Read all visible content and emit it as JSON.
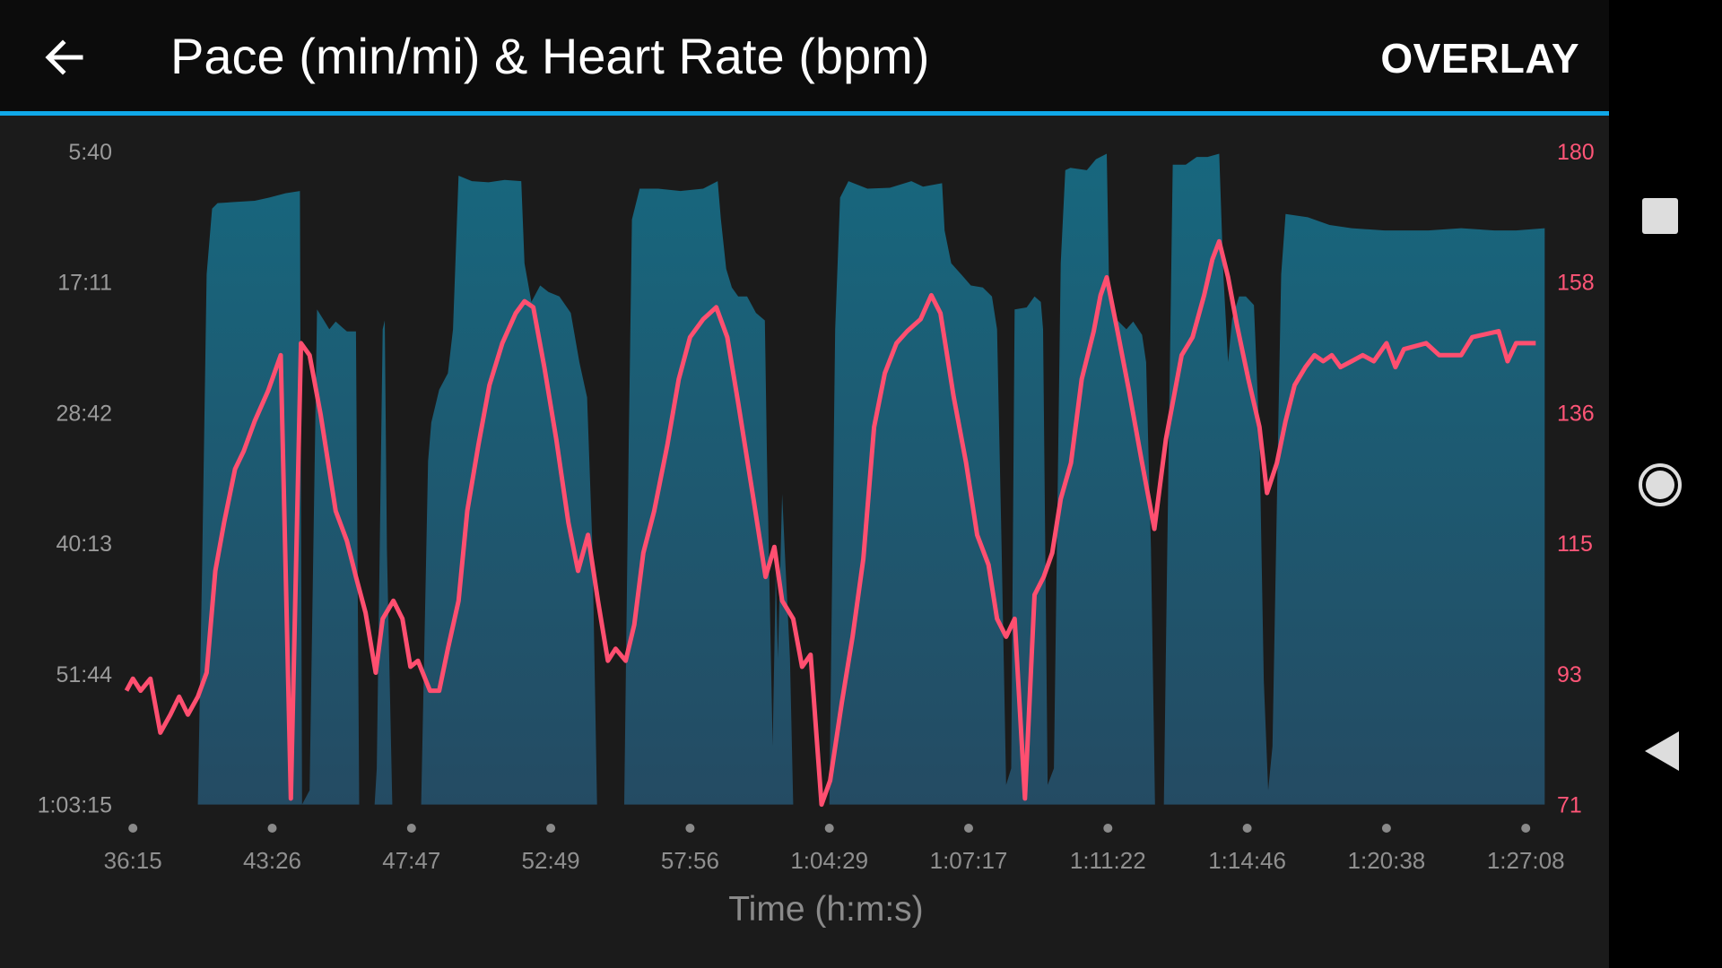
{
  "header": {
    "title": "Pace (min/mi) & Heart Rate (bpm)",
    "overlay_label": "OVERLAY",
    "back_icon": "arrow-left-icon"
  },
  "colors": {
    "accent_line": "#10a8e8",
    "pace_fill_top": "#17677e",
    "pace_fill_bottom": "#244b63",
    "heart_rate": "#ff4f70",
    "axis_text": "#a0a0a0"
  },
  "navbar": {
    "icons": [
      "square-recents-icon",
      "circle-home-icon",
      "triangle-back-icon"
    ]
  },
  "chart_data": {
    "type": "area+line",
    "xlabel": "Time (h:m:s)",
    "x_ticks": [
      "36:15",
      "43:26",
      "47:47",
      "52:49",
      "57:56",
      "1:04:29",
      "1:07:17",
      "1:11:22",
      "1:14:46",
      "1:20:38",
      "1:27:08"
    ],
    "x_tick_seconds": [
      2175,
      2606,
      2867,
      3169,
      3476,
      3869,
      4037,
      4282,
      4486,
      4838,
      5228
    ],
    "left_axis": {
      "unit": "min/mi",
      "ticks": [
        "5:40",
        "17:11",
        "28:42",
        "40:13",
        "51:44",
        "1:03:15"
      ],
      "range_seconds": [
        340,
        3795
      ],
      "inverted": true
    },
    "right_axis": {
      "unit": "bpm",
      "ticks": [
        "180",
        "158",
        "136",
        "115",
        "93",
        "71"
      ],
      "range": [
        71,
        180
      ]
    },
    "grid": false,
    "series": [
      {
        "kind": "area",
        "axis": "left",
        "points_t_s_pace_s": [
          [
            2376,
            3795
          ],
          [
            2389,
            2558
          ],
          [
            2403,
            990
          ],
          [
            2420,
            642
          ],
          [
            2437,
            613
          ],
          [
            2495,
            607
          ],
          [
            2552,
            601
          ],
          [
            2596,
            584
          ],
          [
            2631,
            561
          ],
          [
            2658,
            549
          ],
          [
            2662,
            3795
          ],
          [
            2676,
            3720
          ],
          [
            2690,
            1176
          ],
          [
            2703,
            1234
          ],
          [
            2713,
            1281
          ],
          [
            2725,
            1240
          ],
          [
            2746,
            1292
          ],
          [
            2763,
            1292
          ],
          [
            2769,
            3795
          ],
          [
            2798,
            3795
          ],
          [
            2802,
            3604
          ],
          [
            2813,
            1281
          ],
          [
            2817,
            1234
          ],
          [
            2821,
            2442
          ],
          [
            2831,
            3795
          ],
          [
            2888,
            3795
          ],
          [
            2903,
            1978
          ],
          [
            2910,
            1774
          ],
          [
            2927,
            1600
          ],
          [
            2946,
            1513
          ],
          [
            2957,
            1281
          ],
          [
            2969,
            468
          ],
          [
            2998,
            497
          ],
          [
            3034,
            503
          ],
          [
            3069,
            491
          ],
          [
            3105,
            497
          ],
          [
            3112,
            932
          ],
          [
            3127,
            1136
          ],
          [
            3146,
            1049
          ],
          [
            3164,
            1083
          ],
          [
            3188,
            1107
          ],
          [
            3213,
            1194
          ],
          [
            3232,
            1455
          ],
          [
            3249,
            1641
          ],
          [
            3261,
            2442
          ],
          [
            3271,
            3795
          ],
          [
            3331,
            3795
          ],
          [
            3341,
            1861
          ],
          [
            3348,
            700
          ],
          [
            3365,
            537
          ],
          [
            3406,
            537
          ],
          [
            3455,
            549
          ],
          [
            3513,
            537
          ],
          [
            3554,
            497
          ],
          [
            3563,
            700
          ],
          [
            3578,
            961
          ],
          [
            3594,
            1060
          ],
          [
            3612,
            1107
          ],
          [
            3637,
            1107
          ],
          [
            3662,
            1194
          ],
          [
            3687,
            1234
          ],
          [
            3693,
            1978
          ],
          [
            3709,
            3487
          ],
          [
            3718,
            2558
          ],
          [
            3724,
            3023
          ],
          [
            3736,
            2152
          ],
          [
            3743,
            2442
          ],
          [
            3758,
            3023
          ],
          [
            3767,
            3795
          ],
          [
            3869,
            3795
          ],
          [
            3876,
            1281
          ],
          [
            3882,
            584
          ],
          [
            3892,
            497
          ],
          [
            3915,
            537
          ],
          [
            3942,
            532
          ],
          [
            3968,
            497
          ],
          [
            3982,
            526
          ],
          [
            4005,
            508
          ],
          [
            4008,
            758
          ],
          [
            4016,
            932
          ],
          [
            4028,
            990
          ],
          [
            4041,
            1049
          ],
          [
            4062,
            1060
          ],
          [
            4078,
            1107
          ],
          [
            4087,
            1281
          ],
          [
            4095,
            2442
          ],
          [
            4103,
            3691
          ],
          [
            4112,
            3604
          ],
          [
            4118,
            1176
          ],
          [
            4139,
            1165
          ],
          [
            4153,
            1107
          ],
          [
            4164,
            1136
          ],
          [
            4168,
            1281
          ],
          [
            4176,
            3691
          ],
          [
            4187,
            3604
          ],
          [
            4199,
            932
          ],
          [
            4207,
            439
          ],
          [
            4216,
            427
          ],
          [
            4245,
            439
          ],
          [
            4261,
            381
          ],
          [
            4280,
            352
          ],
          [
            4284,
            1107
          ],
          [
            4293,
            1223
          ],
          [
            4309,
            1281
          ],
          [
            4319,
            1240
          ],
          [
            4332,
            1310
          ],
          [
            4338,
            1455
          ],
          [
            4345,
            2442
          ],
          [
            4351,
            3795
          ],
          [
            4364,
            3795
          ],
          [
            4369,
            2442
          ],
          [
            4377,
            410
          ],
          [
            4396,
            410
          ],
          [
            4412,
            369
          ],
          [
            4428,
            369
          ],
          [
            4445,
            352
          ],
          [
            4451,
            990
          ],
          [
            4458,
            1455
          ],
          [
            4464,
            1223
          ],
          [
            4474,
            1107
          ],
          [
            4484,
            1107
          ],
          [
            4503,
            1153
          ],
          [
            4517,
            1861
          ],
          [
            4528,
            3139
          ],
          [
            4539,
            3720
          ],
          [
            4550,
            3487
          ],
          [
            4564,
            1861
          ],
          [
            4572,
            990
          ],
          [
            4583,
            671
          ],
          [
            4639,
            688
          ],
          [
            4694,
            729
          ],
          [
            4750,
            746
          ],
          [
            4833,
            758
          ],
          [
            4955,
            758
          ],
          [
            5047,
            746
          ],
          [
            5140,
            758
          ],
          [
            5201,
            758
          ],
          [
            5281,
            746
          ]
        ]
      },
      {
        "kind": "line",
        "axis": "right",
        "points_t_s_bpm": [
          [
            2155,
            90
          ],
          [
            2175,
            92
          ],
          [
            2199,
            90
          ],
          [
            2229,
            92
          ],
          [
            2260,
            83
          ],
          [
            2291,
            86
          ],
          [
            2318,
            89
          ],
          [
            2345,
            86
          ],
          [
            2376,
            89
          ],
          [
            2403,
            93
          ],
          [
            2430,
            110
          ],
          [
            2457,
            118
          ],
          [
            2491,
            127
          ],
          [
            2518,
            130
          ],
          [
            2552,
            135
          ],
          [
            2593,
            140
          ],
          [
            2622,
            146
          ],
          [
            2641,
            72
          ],
          [
            2660,
            148
          ],
          [
            2676,
            146
          ],
          [
            2697,
            136
          ],
          [
            2725,
            120
          ],
          [
            2746,
            115
          ],
          [
            2763,
            109
          ],
          [
            2781,
            103
          ],
          [
            2800,
            93
          ],
          [
            2813,
            102
          ],
          [
            2833,
            105
          ],
          [
            2850,
            102
          ],
          [
            2865,
            94
          ],
          [
            2881,
            95
          ],
          [
            2907,
            90
          ],
          [
            2927,
            90
          ],
          [
            2946,
            97
          ],
          [
            2969,
            105
          ],
          [
            2988,
            120
          ],
          [
            3012,
            131
          ],
          [
            3036,
            141
          ],
          [
            3064,
            148
          ],
          [
            3093,
            153
          ],
          [
            3112,
            155
          ],
          [
            3131,
            154
          ],
          [
            3155,
            144
          ],
          [
            3181,
            132
          ],
          [
            3208,
            118
          ],
          [
            3229,
            110
          ],
          [
            3251,
            116
          ],
          [
            3273,
            105
          ],
          [
            3295,
            95
          ],
          [
            3312,
            97
          ],
          [
            3334,
            95
          ],
          [
            3353,
            101
          ],
          [
            3373,
            113
          ],
          [
            3397,
            120
          ],
          [
            3426,
            131
          ],
          [
            3451,
            142
          ],
          [
            3476,
            149
          ],
          [
            3513,
            152
          ],
          [
            3550,
            154
          ],
          [
            3581,
            149
          ],
          [
            3612,
            138
          ],
          [
            3655,
            122
          ],
          [
            3689,
            109
          ],
          [
            3714,
            114
          ],
          [
            3736,
            105
          ],
          [
            3767,
            102
          ],
          [
            3792,
            94
          ],
          [
            3816,
            96
          ],
          [
            3847,
            71
          ],
          [
            3870,
            75
          ],
          [
            3884,
            88
          ],
          [
            3897,
            99
          ],
          [
            3910,
            112
          ],
          [
            3923,
            134
          ],
          [
            3936,
            143
          ],
          [
            3950,
            148
          ],
          [
            3963,
            150
          ],
          [
            3979,
            152
          ],
          [
            3992,
            156
          ],
          [
            4003,
            153
          ],
          [
            4019,
            139
          ],
          [
            4034,
            128
          ],
          [
            4052,
            116
          ],
          [
            4072,
            111
          ],
          [
            4087,
            102
          ],
          [
            4103,
            99
          ],
          [
            4118,
            102
          ],
          [
            4136,
            72
          ],
          [
            4153,
            106
          ],
          [
            4169,
            109
          ],
          [
            4184,
            113
          ],
          [
            4199,
            122
          ],
          [
            4217,
            128
          ],
          [
            4236,
            142
          ],
          [
            4257,
            150
          ],
          [
            4269,
            156
          ],
          [
            4280,
            159
          ],
          [
            4296,
            150
          ],
          [
            4313,
            140
          ],
          [
            4332,
            128
          ],
          [
            4350,
            117
          ],
          [
            4367,
            132
          ],
          [
            4390,
            146
          ],
          [
            4406,
            149
          ],
          [
            4423,
            156
          ],
          [
            4435,
            162
          ],
          [
            4445,
            165
          ],
          [
            4458,
            159
          ],
          [
            4471,
            151
          ],
          [
            4489,
            142
          ],
          [
            4517,
            134
          ],
          [
            4536,
            123
          ],
          [
            4561,
            128
          ],
          [
            4583,
            135
          ],
          [
            4606,
            141
          ],
          [
            4633,
            144
          ],
          [
            4656,
            146
          ],
          [
            4678,
            145
          ],
          [
            4700,
            146
          ],
          [
            4722,
            144
          ],
          [
            4750,
            145
          ],
          [
            4778,
            146
          ],
          [
            4806,
            145
          ],
          [
            4838,
            148
          ],
          [
            4863,
            144
          ],
          [
            4887,
            147
          ],
          [
            4949,
            148
          ],
          [
            4986,
            146
          ],
          [
            5047,
            146
          ],
          [
            5078,
            149
          ],
          [
            5152,
            150
          ],
          [
            5177,
            145
          ],
          [
            5201,
            148
          ],
          [
            5256,
            148
          ]
        ]
      }
    ]
  }
}
